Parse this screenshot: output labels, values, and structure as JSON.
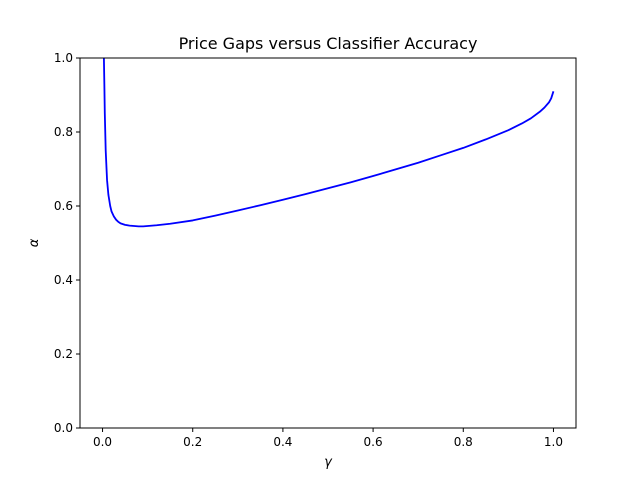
{
  "chart_data": {
    "type": "line",
    "title": "Price Gaps versus Classifier Accuracy",
    "xlabel": "γ",
    "ylabel": "α",
    "xlim": [
      -0.05,
      1.05
    ],
    "ylim": [
      0.0,
      1.0
    ],
    "x_ticks": [
      0.0,
      0.2,
      0.4,
      0.6,
      0.8,
      1.0
    ],
    "x_tick_labels": [
      "0.0",
      "0.2",
      "0.4",
      "0.6",
      "0.8",
      "1.0"
    ],
    "y_ticks": [
      0.0,
      0.2,
      0.4,
      0.6,
      0.8,
      1.0
    ],
    "y_tick_labels": [
      "0.0",
      "0.2",
      "0.4",
      "0.6",
      "0.8",
      "1.0"
    ],
    "grid": false,
    "line_color": "#0000ff",
    "series": [
      {
        "x": [
          0.003,
          0.004,
          0.005,
          0.007,
          0.01,
          0.013,
          0.017,
          0.02,
          0.025,
          0.03,
          0.035,
          0.04,
          0.05,
          0.06,
          0.07,
          0.08,
          0.09,
          0.1,
          0.12,
          0.15,
          0.2,
          0.25,
          0.3,
          0.35,
          0.4,
          0.45,
          0.5,
          0.55,
          0.6,
          0.65,
          0.7,
          0.75,
          0.8,
          0.85,
          0.9,
          0.93,
          0.95,
          0.97,
          0.98,
          0.99,
          0.995,
          1.0
        ],
        "y": [
          1.0,
          0.93,
          0.85,
          0.75,
          0.67,
          0.63,
          0.6,
          0.585,
          0.572,
          0.563,
          0.557,
          0.553,
          0.549,
          0.547,
          0.546,
          0.545,
          0.545,
          0.546,
          0.548,
          0.552,
          0.561,
          0.574,
          0.588,
          0.602,
          0.617,
          0.632,
          0.648,
          0.664,
          0.681,
          0.699,
          0.717,
          0.737,
          0.757,
          0.78,
          0.805,
          0.823,
          0.837,
          0.855,
          0.866,
          0.88,
          0.891,
          0.91
        ]
      }
    ]
  }
}
